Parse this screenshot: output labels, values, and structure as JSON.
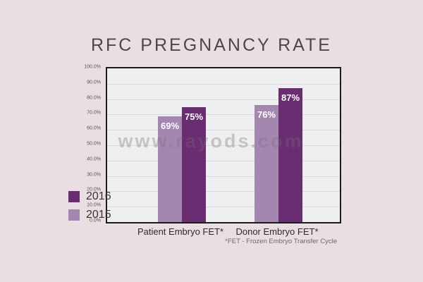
{
  "page": {
    "background": "#e9dee2",
    "title": "RFC PREGNANCY RATE",
    "watermark": "www.rayods.com",
    "footnote": "*FET - Frozen Embryo Transfer Cycle"
  },
  "chart_data": {
    "type": "bar",
    "title": "RFC PREGNANCY RATE",
    "categories": [
      "Patient Embryo FET*",
      "Donor Embryo FET*"
    ],
    "series": [
      {
        "name": "2015",
        "color": "#a487b0",
        "values": [
          69,
          76
        ],
        "labels": [
          "69%",
          "76%"
        ]
      },
      {
        "name": "2016",
        "color": "#6b2d71",
        "values": [
          75,
          87
        ],
        "labels": [
          "75%",
          "87%"
        ]
      }
    ],
    "legend": [
      {
        "label": "2016",
        "color": "#6b2d71"
      },
      {
        "label": "2015",
        "color": "#a487b0"
      }
    ],
    "legend_position": "outside-bottom-left",
    "ylim": [
      0,
      100
    ],
    "ytick_step": 10,
    "yticks": [
      "100.0%",
      "90.0%",
      "80.0%",
      "70.0%",
      "60.0%",
      "50.0%",
      "40.0%",
      "30.0%",
      "20.0%",
      "10.0%",
      "0.0%"
    ],
    "grid": true,
    "plot_background": "#edeff0",
    "grid_color": "#d8dadb",
    "plot_border_color": "#1c1c1c",
    "watermark": "www.rayods.com",
    "footnote": "*FET - Frozen Embryo Transfer Cycle"
  }
}
